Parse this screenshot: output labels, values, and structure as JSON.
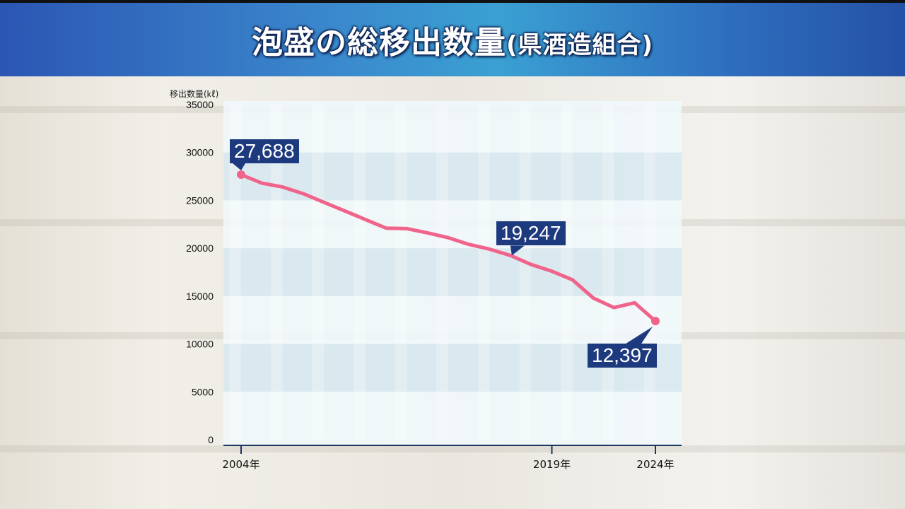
{
  "title": "泡盛の総移出数量",
  "title_sub": "(県酒造組合)",
  "chart_data": {
    "type": "line",
    "title": "泡盛の総移出数量(県酒造組合)",
    "ylabel": "移出数量(㎘)",
    "xlabel": "",
    "x": [
      2004,
      2005,
      2006,
      2007,
      2008,
      2009,
      2010,
      2011,
      2012,
      2013,
      2014,
      2015,
      2016,
      2017,
      2018,
      2019,
      2020,
      2021,
      2022,
      2023,
      2024
    ],
    "x_tick_labels": [
      {
        "year": 2004,
        "label": "2004年"
      },
      {
        "year": 2019,
        "label": "2019年"
      },
      {
        "year": 2024,
        "label": "2024年"
      }
    ],
    "series": [
      {
        "color": "#f0648c",
        "values": [
          27688,
          26800,
          26400,
          25700,
          24800,
          23900,
          23000,
          22100,
          22050,
          21600,
          21100,
          20400,
          19900,
          19247,
          18300,
          17600,
          16700,
          14800,
          13800,
          14300,
          12397
        ]
      }
    ],
    "ylim": [
      0,
      35000
    ],
    "yticks": [
      0,
      5000,
      10000,
      15000,
      20000,
      25000,
      30000,
      35000
    ],
    "ytick_labels": [
      "0",
      "5000",
      "10000",
      "15000",
      "20000",
      "25000",
      "30000",
      "35000"
    ],
    "annotations": [
      {
        "year": 2004,
        "text": "27,688",
        "side": "above"
      },
      {
        "year": 2017,
        "text": "19,247",
        "side": "above"
      },
      {
        "year": 2024,
        "text": "12,397",
        "side": "below"
      }
    ],
    "grid": "horizontal-bands",
    "legend": "none"
  },
  "colors": {
    "title_bar": "#2f6fbf",
    "line": "#f0648c",
    "callout": "#1e3a7e"
  }
}
